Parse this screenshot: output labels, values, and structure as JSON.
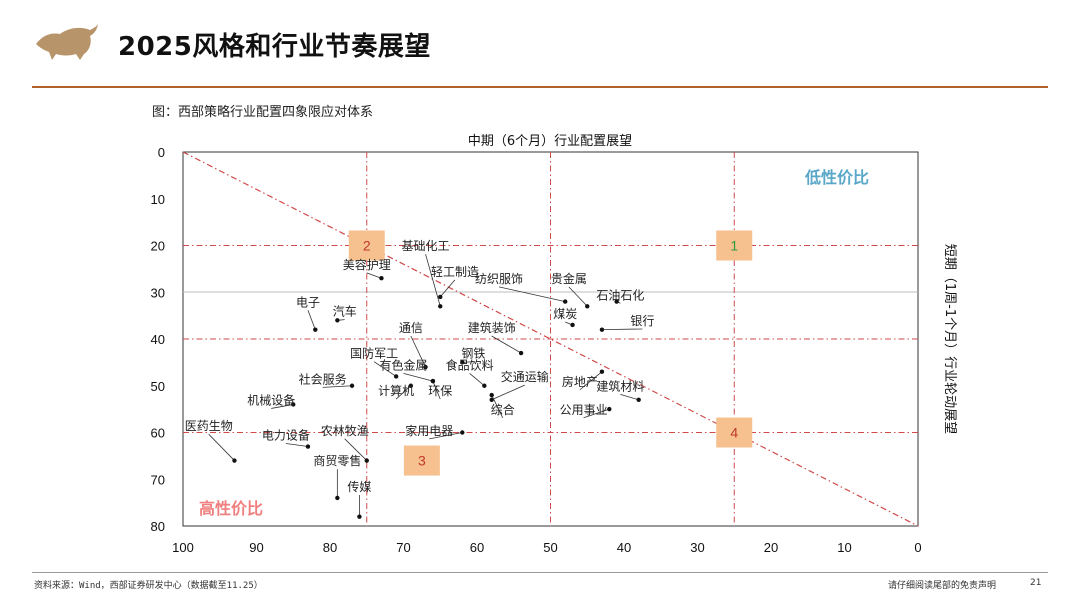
{
  "header": {
    "title": "2025风格和行业节奏展望"
  },
  "figure_caption": "图：西部策略行业配置四象限应对体系",
  "footer": {
    "source": "资料来源：Wind，西部证券研发中心（数据截至11.25）",
    "disclaimer": "请仔细阅读尾部的免责声明",
    "page": "21"
  },
  "colors": {
    "accent": "#b0622a",
    "diag": "#d04a4a",
    "quad_box": "#f6c08f",
    "high_value": "#f08080",
    "low_value": "#5aa7c8"
  },
  "chart_data": {
    "type": "scatter",
    "title": "中期（6个月）行业配置展望",
    "xlabel": "中期（6个月）行业配置展望",
    "ylabel": "短期（1周-1个月）行业轮动展望",
    "xlim": [
      100,
      0
    ],
    "ylim": [
      0,
      80
    ],
    "x_ticks": [
      100,
      90,
      80,
      70,
      60,
      50,
      40,
      30,
      20,
      10,
      0
    ],
    "y_ticks": [
      0,
      10,
      20,
      30,
      40,
      50,
      60,
      70,
      80
    ],
    "dividers_x": [
      75,
      50,
      25
    ],
    "dividers_y": [
      20,
      40,
      60
    ],
    "zone_labels": {
      "low": "低性价比",
      "high": "高性价比"
    },
    "quadrants": [
      {
        "label": "1",
        "x": 25,
        "y": 20
      },
      {
        "label": "2",
        "x": 75,
        "y": 20
      },
      {
        "label": "3",
        "x": 67.5,
        "y": 66
      },
      {
        "label": "4",
        "x": 25,
        "y": 60
      }
    ],
    "points": [
      {
        "name": "基础化工",
        "x": 65,
        "y": 33,
        "lx": 67,
        "ly": 21
      },
      {
        "name": "轻工制造",
        "x": 65,
        "y": 31,
        "lx": 63,
        "ly": 26.5
      },
      {
        "name": "美容护理",
        "x": 73,
        "y": 27,
        "lx": 75,
        "ly": 25
      },
      {
        "name": "纺织服饰",
        "x": 48,
        "y": 32,
        "lx": 57,
        "ly": 28
      },
      {
        "name": "贵金属",
        "x": 45,
        "y": 33,
        "lx": 47.5,
        "ly": 28
      },
      {
        "name": "石油石化",
        "x": 41,
        "y": 32,
        "lx": 40.5,
        "ly": 31.5
      },
      {
        "name": "煤炭",
        "x": 47,
        "y": 37,
        "lx": 48,
        "ly": 35.5
      },
      {
        "name": "银行",
        "x": 43,
        "y": 38,
        "lx": 37.5,
        "ly": 37
      },
      {
        "name": "电子",
        "x": 82,
        "y": 38,
        "lx": 83,
        "ly": 33
      },
      {
        "name": "汽车",
        "x": 79,
        "y": 36,
        "lx": 78,
        "ly": 35
      },
      {
        "name": "通信",
        "x": 67,
        "y": 46,
        "lx": 69,
        "ly": 38.5
      },
      {
        "name": "建筑装饰",
        "x": 54,
        "y": 43,
        "lx": 58,
        "ly": 38.5
      },
      {
        "name": "国防军工",
        "x": 71,
        "y": 48,
        "lx": 74,
        "ly": 44
      },
      {
        "name": "钢铁",
        "x": 62,
        "y": 45,
        "lx": 60.5,
        "ly": 44
      },
      {
        "name": "有色金属",
        "x": 66,
        "y": 49,
        "lx": 70,
        "ly": 46.5
      },
      {
        "name": "食品饮料",
        "x": 59,
        "y": 50,
        "lx": 61,
        "ly": 46.5
      },
      {
        "name": "交通运输",
        "x": 58,
        "y": 53,
        "lx": 53.5,
        "ly": 49
      },
      {
        "name": "房地产",
        "x": 43,
        "y": 47,
        "lx": 46,
        "ly": 50
      },
      {
        "name": "社会服务",
        "x": 77,
        "y": 50,
        "lx": 81,
        "ly": 49.5
      },
      {
        "name": "计算机",
        "x": 69,
        "y": 50,
        "lx": 71,
        "ly": 52
      },
      {
        "name": "环保",
        "x": 66,
        "y": 49,
        "lx": 65,
        "ly": 52
      },
      {
        "name": "建筑材料",
        "x": 38,
        "y": 53,
        "lx": 40.5,
        "ly": 51
      },
      {
        "name": "综合",
        "x": 58,
        "y": 52,
        "lx": 56.5,
        "ly": 56
      },
      {
        "name": "公用事业",
        "x": 42,
        "y": 55,
        "lx": 45.5,
        "ly": 56
      },
      {
        "name": "机械设备",
        "x": 85,
        "y": 54,
        "lx": 88,
        "ly": 54
      },
      {
        "name": "医药生物",
        "x": 93,
        "y": 66,
        "lx": 96.5,
        "ly": 59.5
      },
      {
        "name": "电力设备",
        "x": 83,
        "y": 63,
        "lx": 86,
        "ly": 61.5
      },
      {
        "name": "农林牧渔",
        "x": 75,
        "y": 66,
        "lx": 78,
        "ly": 60.5
      },
      {
        "name": "家用电器",
        "x": 62,
        "y": 60,
        "lx": 66.5,
        "ly": 60.5
      },
      {
        "name": "商贸零售",
        "x": 79,
        "y": 74,
        "lx": 79,
        "ly": 67
      },
      {
        "name": "传媒",
        "x": 76,
        "y": 78,
        "lx": 76,
        "ly": 72.5
      }
    ]
  }
}
